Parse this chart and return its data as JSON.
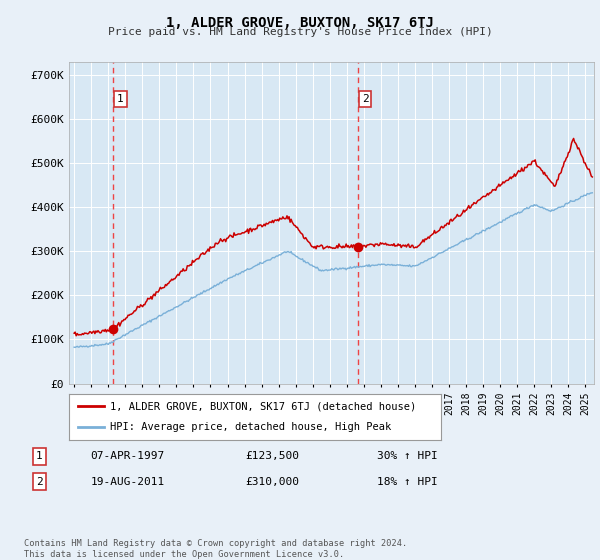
{
  "title": "1, ALDER GROVE, BUXTON, SK17 6TJ",
  "subtitle": "Price paid vs. HM Land Registry's House Price Index (HPI)",
  "background_color": "#e8f0f8",
  "plot_bg_color": "#d8e8f4",
  "sale1_date": 1997.27,
  "sale1_price": 123500,
  "sale2_date": 2011.63,
  "sale2_price": 310000,
  "legend_line1": "1, ALDER GROVE, BUXTON, SK17 6TJ (detached house)",
  "legend_line2": "HPI: Average price, detached house, High Peak",
  "table_row1": [
    "1",
    "07-APR-1997",
    "£123,500",
    "30% ↑ HPI"
  ],
  "table_row2": [
    "2",
    "19-AUG-2011",
    "£310,000",
    "18% ↑ HPI"
  ],
  "footer": "Contains HM Land Registry data © Crown copyright and database right 2024.\nThis data is licensed under the Open Government Licence v3.0.",
  "ylim": [
    0,
    730000
  ],
  "xlim_start": 1994.7,
  "xlim_end": 2025.5,
  "line_color_property": "#cc0000",
  "line_color_hpi": "#7ab0d8",
  "vline_color": "#ee4444",
  "marker_color": "#cc0000",
  "grid_color": "#ffffff"
}
